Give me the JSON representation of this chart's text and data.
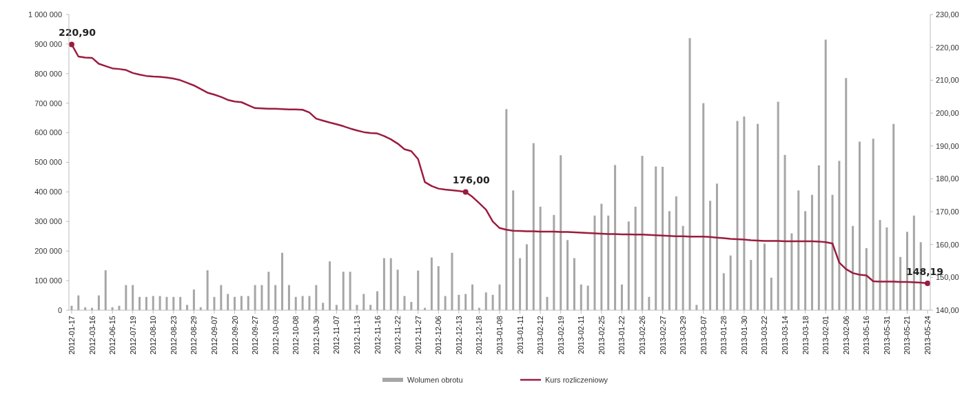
{
  "chart_data": {
    "type": "bar",
    "legend": "bottom",
    "grid": false,
    "categories": [
      "2012-01-17",
      null,
      null,
      "2012-03-16",
      null,
      null,
      "2012-06-15",
      null,
      null,
      "2012-07-19",
      null,
      null,
      "2012-08-10",
      null,
      null,
      "2012-08-23",
      null,
      null,
      "2012-08-29",
      null,
      null,
      "2012-09-07",
      null,
      null,
      "2012-09-20",
      null,
      null,
      "2012-09-27",
      null,
      null,
      "2012-10-03",
      null,
      null,
      "2012-10-08",
      null,
      null,
      "2012-10-30",
      null,
      null,
      "2012-11-07",
      null,
      null,
      "2012-11-13",
      null,
      null,
      "2012-11-16",
      null,
      null,
      "2012-11-22",
      null,
      null,
      "2012-11-27",
      null,
      null,
      "2012-12-06",
      null,
      null,
      "2012-12-13",
      null,
      null,
      "2012-12-18",
      null,
      null,
      "2013-01-08",
      null,
      null,
      "2013-01-11",
      null,
      null,
      "2013-02-12",
      null,
      null,
      "2013-02-19",
      null,
      null,
      "2013-02-11",
      null,
      null,
      "2013-02-25",
      null,
      null,
      "2013-01-22",
      null,
      null,
      "2013-02-26",
      null,
      null,
      "2013-02-27",
      null,
      null,
      "2013-03-29",
      null,
      null,
      "2013-03-07",
      null,
      null,
      "2013-01-28",
      null,
      null,
      "2013-01-30",
      null,
      null,
      "2013-03-22",
      null,
      null,
      "2013-03-14",
      null,
      null,
      "2013-03-18",
      null,
      null,
      "2013-02-01",
      null,
      null,
      "2013-02-06",
      null,
      null,
      "2013-05-16",
      null,
      null,
      "2013-05-31",
      null,
      null,
      "2013-05-21",
      null,
      null,
      "2013-05-24"
    ],
    "ylim": [
      0,
      1000000
    ],
    "yticks": [
      {
        "value": 0,
        "label": "0"
      },
      {
        "value": 100000,
        "label": "100 000"
      },
      {
        "value": 200000,
        "label": "200 000"
      },
      {
        "value": 300000,
        "label": "300 000"
      },
      {
        "value": 400000,
        "label": "400 000"
      },
      {
        "value": 500000,
        "label": "500 000"
      },
      {
        "value": 600000,
        "label": "600 000"
      },
      {
        "value": 700000,
        "label": "700 000"
      },
      {
        "value": 800000,
        "label": "800 000"
      },
      {
        "value": 900000,
        "label": "900 000"
      },
      {
        "value": 1000000,
        "label": "1 000 000"
      }
    ],
    "y2lim": [
      140,
      230
    ],
    "y2ticks": [
      {
        "value": 140,
        "label": "140,00"
      },
      {
        "value": 150,
        "label": "150,00"
      },
      {
        "value": 160,
        "label": "160,00"
      },
      {
        "value": 170,
        "label": "170,00"
      },
      {
        "value": 180,
        "label": "180,00"
      },
      {
        "value": 190,
        "label": "190,00"
      },
      {
        "value": 200,
        "label": "200,00"
      },
      {
        "value": 210,
        "label": "210,00"
      },
      {
        "value": 220,
        "label": "220,00"
      },
      {
        "value": 230,
        "label": "230,00"
      }
    ],
    "series": [
      {
        "name": "Wolumen obrotu",
        "color": "#a6a6a6",
        "values": [
          15000,
          50000,
          10000,
          8000,
          50000,
          135000,
          10000,
          15000,
          85000,
          85000,
          45000,
          45000,
          48000,
          48000,
          45000,
          45000,
          45000,
          18000,
          70000,
          10000,
          135000,
          45000,
          85000,
          55000,
          45000,
          48000,
          48000,
          85000,
          85000,
          130000,
          85000,
          194000,
          85000,
          45000,
          48000,
          48000,
          85000,
          25000,
          165000,
          18000,
          130000,
          130000,
          18000,
          55000,
          18000,
          64000,
          176000,
          176000,
          137000,
          48000,
          28000,
          134000,
          8000,
          178000,
          149000,
          48000,
          194000,
          52000,
          55000,
          87000,
          8000,
          60000,
          52000,
          87000,
          680000,
          405000,
          176000,
          223000,
          565000,
          350000,
          45000,
          322000,
          524000,
          237000,
          176000,
          87000,
          83000,
          320000,
          360000,
          320000,
          491000,
          87000,
          300000,
          350000,
          522000,
          45000,
          486000,
          485000,
          335000,
          385000,
          285000,
          920000,
          18000,
          700000,
          370000,
          428000,
          125000,
          185000,
          640000,
          655000,
          170000,
          630000,
          225000,
          110000,
          705000,
          525000,
          260000,
          405000,
          335000,
          390000,
          490000,
          915000,
          390000,
          505000,
          785000,
          285000,
          570000,
          210000,
          580000,
          305000,
          280000,
          630000,
          180000,
          265000,
          320000,
          230000,
          null
        ]
      },
      {
        "name": "Kurs rozliczeniowy",
        "type": "line",
        "axis": "y2",
        "color": "#9b1b3f",
        "values": [
          220.9,
          217.2,
          216.9,
          216.8,
          215.0,
          214.3,
          213.6,
          213.4,
          213.1,
          212.2,
          211.7,
          211.3,
          211.1,
          211.0,
          210.8,
          210.5,
          210.0,
          209.2,
          208.4,
          207.3,
          206.2,
          205.6,
          204.9,
          204.0,
          203.5,
          203.3,
          202.4,
          201.5,
          201.4,
          201.3,
          201.3,
          201.2,
          201.1,
          201.1,
          201.0,
          200.2,
          198.3,
          197.7,
          197.1,
          196.6,
          196.0,
          195.3,
          194.7,
          194.2,
          193.9,
          193.8,
          193.0,
          192.0,
          190.7,
          189.0,
          188.4,
          186.0,
          179.0,
          177.8,
          177.0,
          176.7,
          176.5,
          176.3,
          176.0,
          174.5,
          172.6,
          170.6,
          167.0,
          165.0,
          164.5,
          164.2,
          164.1,
          164.0,
          164.0,
          163.9,
          163.9,
          163.9,
          163.8,
          163.8,
          163.7,
          163.6,
          163.5,
          163.4,
          163.3,
          163.2,
          163.2,
          163.1,
          163.1,
          163.0,
          163.0,
          162.9,
          162.8,
          162.7,
          162.6,
          162.5,
          162.5,
          162.4,
          162.4,
          162.4,
          162.3,
          162.1,
          161.9,
          161.7,
          161.6,
          161.5,
          161.3,
          161.2,
          161.1,
          161.1,
          161.1,
          161.0,
          161.0,
          161.0,
          161.0,
          161.0,
          160.9,
          160.7,
          160.3,
          154.5,
          152.5,
          151.3,
          150.8,
          150.6,
          148.8,
          148.7,
          148.7,
          148.7,
          148.6,
          148.6,
          148.5,
          148.4,
          148.19
        ],
        "value_labels": [
          "220,90",
          null,
          null,
          null,
          null,
          null,
          null,
          null,
          null,
          null,
          null,
          null,
          null,
          null,
          null,
          null,
          null,
          null,
          null,
          null,
          null,
          null,
          null,
          null,
          null,
          null,
          null,
          null,
          null,
          null,
          null,
          null,
          null,
          null,
          null,
          null,
          null,
          null,
          null,
          null,
          null,
          null,
          null,
          null,
          null,
          null,
          null,
          null,
          null,
          null,
          null,
          null,
          null,
          null,
          null,
          null,
          null,
          null,
          "176,00",
          null,
          null,
          null,
          null,
          null,
          null,
          null,
          null,
          null,
          null,
          null,
          null,
          null,
          null,
          null,
          null,
          null,
          null,
          null,
          null,
          null,
          null,
          null,
          null,
          null,
          null,
          null,
          null,
          null,
          null,
          null,
          null,
          null,
          null,
          null,
          null,
          null,
          null,
          null,
          null,
          null,
          null,
          null,
          null,
          null,
          null,
          null,
          null,
          null,
          null,
          null,
          null,
          null,
          null,
          null,
          null,
          null,
          null,
          null,
          null,
          null,
          null,
          null,
          null,
          null,
          null,
          null,
          "148,19"
        ]
      }
    ]
  }
}
